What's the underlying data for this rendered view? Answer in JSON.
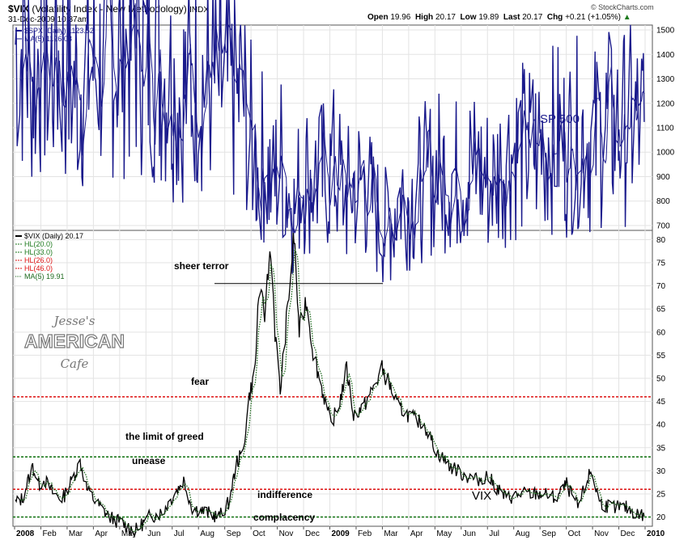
{
  "header": {
    "symbol": "$VIX",
    "name": "(Volatility Index - New Methodology)",
    "exchange": "INDX",
    "datetime": "31-Dec-2009 10:37am",
    "open_label": "Open",
    "open": "19.96",
    "high_label": "High",
    "high": "20.17",
    "low_label": "Low",
    "low": "19.89",
    "last_label": "Last",
    "last": "20.17",
    "chg_label": "Chg",
    "chg": "+0.21 (+1.05%)",
    "watermark": "© StockCharts.com",
    "logo_text": [
      "Jesse's",
      "AMERICAN",
      "Cafe"
    ]
  },
  "colors": {
    "spx": "#1a1a8c",
    "vix": "#000000",
    "ma": "#1e6a1e",
    "green_hl": "#1e7a1e",
    "red_hl": "#dd1111"
  },
  "x_axis": {
    "labels": [
      "2008",
      "Feb",
      "Mar",
      "Apr",
      "May",
      "Jun",
      "Jul",
      "Aug",
      "Sep",
      "Oct",
      "Nov",
      "Dec",
      "2009",
      "Feb",
      "Mar",
      "Apr",
      "May",
      "Jun",
      "Jul",
      "Aug",
      "Sep",
      "Oct",
      "Nov",
      "Dec",
      "2010"
    ]
  },
  "chart_data": [
    {
      "type": "line",
      "legend": [
        "$SPX (Daily) 1123.52",
        "MA(5) 1126.08"
      ],
      "annotation": "SP 500",
      "ylim": [
        680,
        1520
      ],
      "yticks": [
        700,
        800,
        900,
        1000,
        1100,
        1200,
        1300,
        1400,
        1500
      ],
      "series": [
        {
          "name": "$SPX (Daily)",
          "points": [
            [
              "2008-01-02",
              1450
            ],
            [
              "2008-01-10",
              1410
            ],
            [
              "2008-01-22",
              1310
            ],
            [
              "2008-02-01",
              1395
            ],
            [
              "2008-02-12",
              1350
            ],
            [
              "2008-02-22",
              1370
            ],
            [
              "2008-03-10",
              1275
            ],
            [
              "2008-03-17",
              1275
            ],
            [
              "2008-03-25",
              1350
            ],
            [
              "2008-04-10",
              1360
            ],
            [
              "2008-04-25",
              1395
            ],
            [
              "2008-05-05",
              1410
            ],
            [
              "2008-05-19",
              1425
            ],
            [
              "2008-06-05",
              1390
            ],
            [
              "2008-06-15",
              1350
            ],
            [
              "2008-06-30",
              1280
            ],
            [
              "2008-07-10",
              1245
            ],
            [
              "2008-07-23",
              1285
            ],
            [
              "2008-08-11",
              1305
            ],
            [
              "2008-08-25",
              1270
            ],
            [
              "2008-09-05",
              1245
            ],
            [
              "2008-09-15",
              1190
            ],
            [
              "2008-09-19",
              1255
            ],
            [
              "2008-09-29",
              1105
            ],
            [
              "2008-10-10",
              900
            ],
            [
              "2008-10-13",
              1000
            ],
            [
              "2008-10-27",
              850
            ],
            [
              "2008-11-04",
              1005
            ],
            [
              "2008-11-12",
              850
            ],
            [
              "2008-11-20",
              755
            ],
            [
              "2008-11-28",
              895
            ],
            [
              "2008-12-08",
              905
            ],
            [
              "2008-12-19",
              885
            ],
            [
              "2009-01-06",
              935
            ],
            [
              "2009-01-20",
              805
            ],
            [
              "2009-01-28",
              875
            ],
            [
              "2009-02-09",
              870
            ],
            [
              "2009-02-23",
              745
            ],
            [
              "2009-03-09",
              677
            ],
            [
              "2009-03-17",
              780
            ],
            [
              "2009-03-26",
              830
            ],
            [
              "2009-04-08",
              815
            ],
            [
              "2009-04-17",
              870
            ],
            [
              "2009-05-08",
              930
            ],
            [
              "2009-05-28",
              905
            ],
            [
              "2009-06-12",
              945
            ],
            [
              "2009-07-08",
              880
            ],
            [
              "2009-07-24",
              980
            ],
            [
              "2009-08-07",
              1010
            ],
            [
              "2009-08-31",
              1020
            ],
            [
              "2009-09-22",
              1070
            ],
            [
              "2009-10-02",
              1025
            ],
            [
              "2009-10-19",
              1095
            ],
            [
              "2009-10-30",
              1035
            ],
            [
              "2009-11-17",
              1110
            ],
            [
              "2009-11-27",
              1090
            ],
            [
              "2009-12-14",
              1115
            ],
            [
              "2009-12-31",
              1123.52
            ]
          ]
        },
        {
          "name": "MA(5)",
          "derived_from": "$SPX (Daily)",
          "period": 5
        }
      ]
    },
    {
      "type": "line",
      "legend": [
        "$VIX (Daily) 20.17",
        "HL(20.0)",
        "HL(33.0)",
        "HL(26.0)",
        "HL(46.0)",
        "MA(5) 19.91"
      ],
      "ylim": [
        18,
        82
      ],
      "yticks": [
        20,
        25,
        30,
        35,
        40,
        45,
        50,
        55,
        60,
        65,
        70,
        75,
        80
      ],
      "hlines": [
        {
          "value": 20.0,
          "color": "green",
          "label": "complacency"
        },
        {
          "value": 33.0,
          "color": "green",
          "label": "the limit of greed"
        },
        {
          "value": 26.0,
          "color": "red",
          "label": "unease"
        },
        {
          "value": 46.0,
          "color": "red",
          "label": "fear"
        }
      ],
      "annotations": [
        "sheer terror",
        "indifference",
        "VIX"
      ],
      "terror_line_value": 70.5,
      "series": [
        {
          "name": "$VIX (Daily)",
          "points": [
            [
              "2008-01-02",
              23
            ],
            [
              "2008-01-10",
              24
            ],
            [
              "2008-01-22",
              31
            ],
            [
              "2008-01-29",
              27
            ],
            [
              "2008-02-05",
              28
            ],
            [
              "2008-02-15",
              25
            ],
            [
              "2008-02-26",
              24
            ],
            [
              "2008-03-10",
              29
            ],
            [
              "2008-03-17",
              32
            ],
            [
              "2008-03-25",
              26
            ],
            [
              "2008-04-05",
              23
            ],
            [
              "2008-04-20",
              20
            ],
            [
              "2008-05-01",
              19
            ],
            [
              "2008-05-20",
              17
            ],
            [
              "2008-06-05",
              20
            ],
            [
              "2008-06-20",
              21
            ],
            [
              "2008-07-01",
              24
            ],
            [
              "2008-07-15",
              28
            ],
            [
              "2008-07-25",
              22
            ],
            [
              "2008-08-10",
              21
            ],
            [
              "2008-08-25",
              20
            ],
            [
              "2008-09-05",
              23
            ],
            [
              "2008-09-15",
              32
            ],
            [
              "2008-09-22",
              34
            ],
            [
              "2008-09-29",
              46
            ],
            [
              "2008-10-06",
              52
            ],
            [
              "2008-10-10",
              69
            ],
            [
              "2008-10-17",
              64
            ],
            [
              "2008-10-24",
              79
            ],
            [
              "2008-10-29",
              60
            ],
            [
              "2008-11-04",
              47
            ],
            [
              "2008-11-11",
              62
            ],
            [
              "2008-11-20",
              80.9
            ],
            [
              "2008-11-26",
              60
            ],
            [
              "2008-12-04",
              67
            ],
            [
              "2008-12-12",
              56
            ],
            [
              "2008-12-22",
              48
            ],
            [
              "2009-01-02",
              40
            ],
            [
              "2009-01-12",
              45
            ],
            [
              "2009-01-20",
              52
            ],
            [
              "2009-01-28",
              42
            ],
            [
              "2009-02-09",
              44
            ],
            [
              "2009-02-23",
              49
            ],
            [
              "2009-03-02",
              52
            ],
            [
              "2009-03-10",
              49
            ],
            [
              "2009-03-20",
              44
            ],
            [
              "2009-04-02",
              42
            ],
            [
              "2009-04-20",
              40
            ],
            [
              "2009-05-05",
              34
            ],
            [
              "2009-05-20",
              31
            ],
            [
              "2009-06-05",
              29
            ],
            [
              "2009-06-20",
              28
            ],
            [
              "2009-07-02",
              29
            ],
            [
              "2009-07-10",
              27
            ],
            [
              "2009-07-24",
              24
            ],
            [
              "2009-08-10",
              25
            ],
            [
              "2009-08-25",
              25
            ],
            [
              "2009-09-05",
              25
            ],
            [
              "2009-09-20",
              24
            ],
            [
              "2009-10-02",
              27
            ],
            [
              "2009-10-15",
              22
            ],
            [
              "2009-10-30",
              30
            ],
            [
              "2009-11-10",
              23
            ],
            [
              "2009-11-25",
              22
            ],
            [
              "2009-12-10",
              22
            ],
            [
              "2009-12-20",
              21
            ],
            [
              "2009-12-31",
              20.17
            ]
          ]
        },
        {
          "name": "MA(5)",
          "derived_from": "$VIX (Daily)",
          "period": 5
        }
      ]
    }
  ]
}
